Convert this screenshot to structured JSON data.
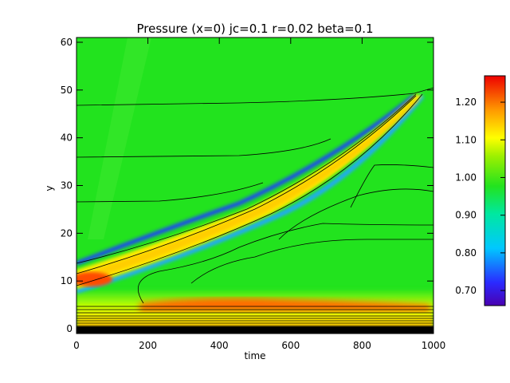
{
  "chart_data": {
    "type": "heatmap",
    "title": "Pressure (x=0) jc=0.1 r=0.02 beta=0.1",
    "xlabel": "time",
    "ylabel": "y",
    "xlim": [
      0,
      1000
    ],
    "ylim": [
      -1,
      61
    ],
    "x_ticks": [
      0,
      200,
      400,
      600,
      800,
      1000
    ],
    "y_ticks": [
      0,
      10,
      20,
      30,
      40,
      50,
      60
    ],
    "colorbar": {
      "range": [
        0.66,
        1.27
      ],
      "ticks": [
        0.7,
        0.8,
        0.9,
        1.0,
        1.1,
        1.2
      ],
      "tick_labels": [
        "0.70",
        "0.80",
        "0.90",
        "1.00",
        "1.10",
        "1.20"
      ],
      "colormap": "rainbow"
    },
    "background_value": 1.0,
    "front": {
      "description": "ridge of high pressure travelling upward in y with time, flanked by low-pressure edges",
      "center_path": [
        [
          0,
          10
        ],
        [
          200,
          17
        ],
        [
          400,
          23
        ],
        [
          600,
          32
        ],
        [
          800,
          41
        ],
        [
          950,
          49
        ]
      ],
      "peak_value": 1.12,
      "edge_min_value": 0.72
    },
    "hotspots": [
      {
        "time": 40,
        "y": 10,
        "value": 1.2
      },
      {
        "time": 350,
        "y": 5.5,
        "value": 1.24
      }
    ],
    "contour_lines_y": [
      46,
      36,
      27,
      13.5,
      11.5,
      9
    ],
    "colors": {
      "background": "#22e31e",
      "high": "#ff4b00",
      "low": "#1a3cff"
    }
  }
}
